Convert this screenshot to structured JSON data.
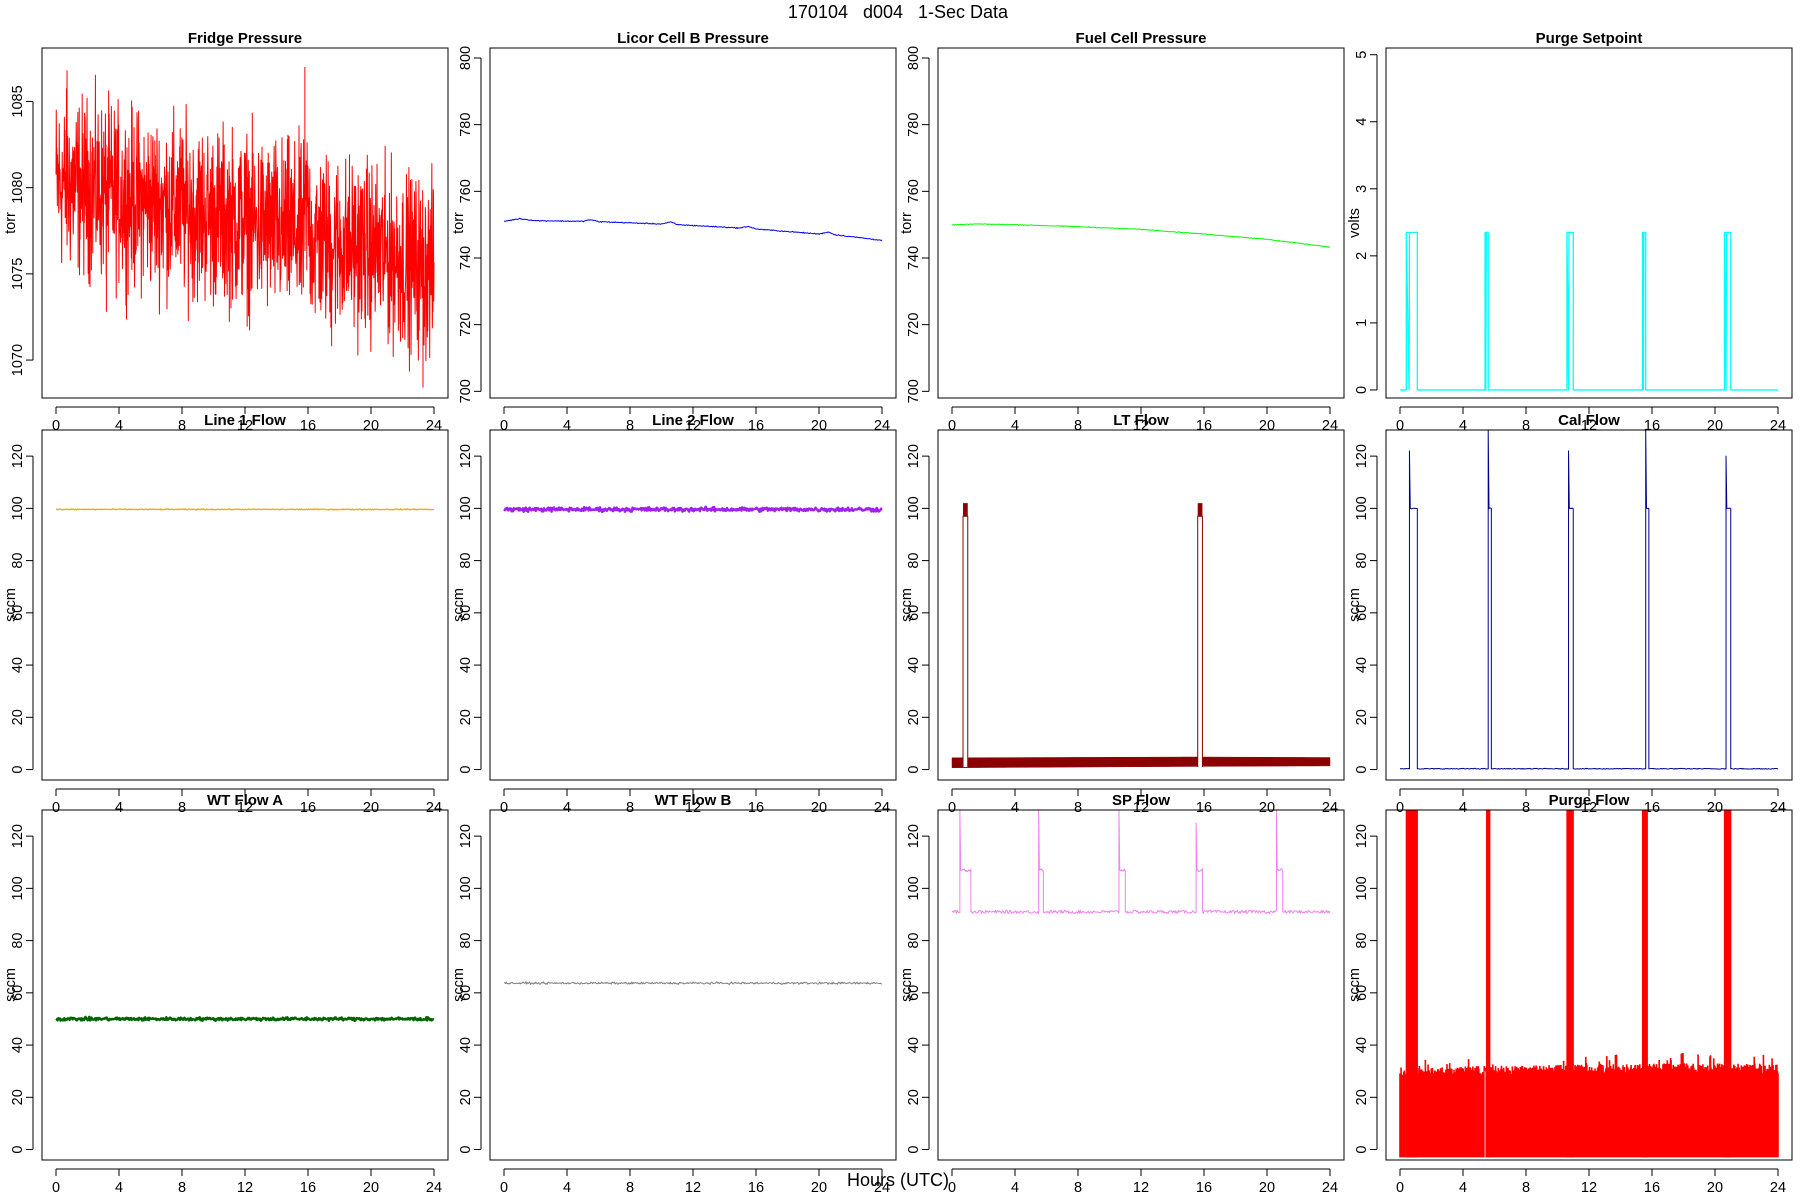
{
  "figure": {
    "title": "170104   d004   1-Sec Data",
    "xlabel": "Hours (UTC)"
  },
  "chart_data": [
    {
      "type": "line",
      "title": "Fridge Pressure",
      "ylabel": "torr",
      "color": "#ff0000",
      "xlim": [
        0,
        24
      ],
      "ylim": [
        1067.8,
        1088.1
      ],
      "xticks": [
        0,
        4,
        8,
        12,
        16,
        20,
        24
      ],
      "yticks": [
        1070,
        1075,
        1080,
        1085
      ],
      "noise": 3.3,
      "line_width": 1,
      "points": [
        [
          0,
          1080.3
        ],
        [
          2,
          1080
        ],
        [
          4,
          1079.5
        ],
        [
          8,
          1078.8
        ],
        [
          12,
          1078
        ],
        [
          15.8,
          1077.3
        ],
        [
          15.9,
          1079.5
        ],
        [
          16.2,
          1077
        ],
        [
          20,
          1076.4
        ],
        [
          24,
          1075.2
        ]
      ],
      "extremes": [
        [
          0.7,
          1086.8
        ],
        [
          15.8,
          1087.0
        ],
        [
          23.3,
          1068.4
        ],
        [
          3.2,
          1072.8
        ],
        [
          17.5,
          1070.8
        ]
      ]
    },
    {
      "type": "line",
      "title": "Licor Cell B Pressure",
      "ylabel": "torr",
      "color": "#0000ff",
      "xlim": [
        0,
        24
      ],
      "ylim": [
        698,
        803
      ],
      "xticks": [
        0,
        4,
        8,
        12,
        16,
        20,
        24
      ],
      "yticks": [
        700,
        720,
        740,
        760,
        780,
        800
      ],
      "noise": 0.15,
      "line_width": 1,
      "points": [
        [
          0,
          751
        ],
        [
          1,
          751.8
        ],
        [
          2,
          751.2
        ],
        [
          5,
          751
        ],
        [
          5.5,
          751.5
        ],
        [
          6,
          750.9
        ],
        [
          10,
          750.2
        ],
        [
          10.6,
          750.8
        ],
        [
          11,
          750
        ],
        [
          15,
          749
        ],
        [
          15.5,
          749.5
        ],
        [
          16,
          748.7
        ],
        [
          20,
          747.2
        ],
        [
          20.6,
          747.8
        ],
        [
          21,
          747
        ],
        [
          24,
          745.3
        ]
      ]
    },
    {
      "type": "line",
      "title": "Fuel Cell Pressure",
      "ylabel": "torr",
      "color": "#00ff00",
      "xlim": [
        0,
        24
      ],
      "ylim": [
        698,
        803
      ],
      "xticks": [
        0,
        4,
        8,
        12,
        16,
        20,
        24
      ],
      "yticks": [
        700,
        720,
        740,
        760,
        780,
        800
      ],
      "noise": 0.12,
      "line_width": 1,
      "points": [
        [
          0,
          749.9
        ],
        [
          1.5,
          750.2
        ],
        [
          4,
          750
        ],
        [
          8,
          749.4
        ],
        [
          12,
          748.6
        ],
        [
          16,
          747.2
        ],
        [
          20,
          745.6
        ],
        [
          24,
          743.3
        ]
      ]
    },
    {
      "type": "line",
      "title": "Purge Setpoint",
      "ylabel": "volts",
      "color": "#00ffff",
      "xlim": [
        0,
        24
      ],
      "ylim": [
        -0.12,
        5.1
      ],
      "xticks": [
        0,
        4,
        8,
        12,
        16,
        20,
        24
      ],
      "yticks": [
        0,
        1,
        2,
        3,
        4,
        5
      ],
      "noise": 0,
      "line_width": 1.3,
      "baseline": 0,
      "spike_level": 2.35,
      "spikes": [
        [
          0.4,
          1.1
        ],
        [
          5.4,
          5.6
        ],
        [
          10.6,
          11.0
        ],
        [
          15.4,
          15.6
        ],
        [
          20.6,
          21.0
        ]
      ]
    },
    {
      "type": "line",
      "title": "Line 1 Flow",
      "ylabel": "sccm",
      "color": "#ffa500",
      "xlim": [
        0,
        24
      ],
      "ylim": [
        -4,
        130
      ],
      "xticks": [
        0,
        4,
        8,
        12,
        16,
        20,
        24
      ],
      "yticks": [
        0,
        20,
        40,
        60,
        80,
        100,
        120
      ],
      "noise": 0.2,
      "line_width": 1.3,
      "points": [
        [
          0,
          99.6
        ],
        [
          24,
          99.6
        ]
      ]
    },
    {
      "type": "line",
      "title": "Line 2 Flow",
      "ylabel": "sccm",
      "color": "#a020f0",
      "xlim": [
        0,
        24
      ],
      "ylim": [
        -4,
        130
      ],
      "xticks": [
        0,
        4,
        8,
        12,
        16,
        20,
        24
      ],
      "yticks": [
        0,
        20,
        40,
        60,
        80,
        100,
        120
      ],
      "noise": 0.8,
      "line_width": 2.5,
      "points": [
        [
          0,
          99.6
        ],
        [
          24,
          99.6
        ]
      ]
    },
    {
      "type": "line",
      "title": "LT Flow",
      "ylabel": "sccm",
      "color": "#8b0000",
      "xlim": [
        0,
        24
      ],
      "ylim": [
        -4,
        130
      ],
      "xticks": [
        0,
        4,
        8,
        12,
        16,
        20,
        24
      ],
      "yticks": [
        0,
        20,
        40,
        60,
        80,
        100,
        120
      ],
      "noise": 0,
      "line_width": 1,
      "baseline_band": [
        [
          0,
          0.7,
          4.5
        ],
        [
          15.6,
          1.2,
          4.8
        ],
        [
          24,
          1.4,
          4.6
        ]
      ],
      "spikes": [
        [
          0.7,
          1.0,
          97,
          102
        ],
        [
          15.6,
          15.9,
          97,
          102
        ]
      ]
    },
    {
      "type": "line",
      "title": "Cal Flow",
      "ylabel": "sccm",
      "color": "#00008b",
      "xlim": [
        0,
        24
      ],
      "ylim": [
        -4,
        130
      ],
      "xticks": [
        0,
        4,
        8,
        12,
        16,
        20,
        24
      ],
      "yticks": [
        0,
        20,
        40,
        60,
        80,
        100,
        120
      ],
      "noise": 0.15,
      "line_width": 1,
      "baseline": 0.3,
      "spike_level": 100,
      "spikes": [
        [
          0.6,
          1.1,
          122
        ],
        [
          5.6,
          5.8,
          130
        ],
        [
          10.7,
          11.0,
          122
        ],
        [
          15.6,
          15.8,
          130
        ],
        [
          20.7,
          21.0,
          120
        ]
      ]
    },
    {
      "type": "line",
      "title": "WT Flow A",
      "ylabel": "sccm",
      "color": "#006400",
      "xlim": [
        0,
        24
      ],
      "ylim": [
        -4,
        130
      ],
      "xticks": [
        0,
        4,
        8,
        12,
        16,
        20,
        24
      ],
      "yticks": [
        0,
        20,
        40,
        60,
        80,
        100,
        120
      ],
      "noise": 0.6,
      "line_width": 2.5,
      "points": [
        [
          0,
          50
        ],
        [
          24,
          50
        ]
      ]
    },
    {
      "type": "line",
      "title": "WT Flow B",
      "ylabel": "sccm",
      "color": "#808080",
      "xlim": [
        0,
        24
      ],
      "ylim": [
        -4,
        130
      ],
      "xticks": [
        0,
        4,
        8,
        12,
        16,
        20,
        24
      ],
      "yticks": [
        0,
        20,
        40,
        60,
        80,
        100,
        120
      ],
      "noise": 0.4,
      "line_width": 1,
      "points": [
        [
          0,
          63.7
        ],
        [
          24,
          63.7
        ]
      ]
    },
    {
      "type": "line",
      "title": "SP Flow",
      "ylabel": "sccm",
      "color": "#ee82ee",
      "xlim": [
        0,
        24
      ],
      "ylim": [
        -4,
        130
      ],
      "xticks": [
        0,
        4,
        8,
        12,
        16,
        20,
        24
      ],
      "yticks": [
        0,
        20,
        40,
        60,
        80,
        100,
        120
      ],
      "noise": 0.6,
      "line_width": 1,
      "baseline": 91,
      "spike_level": 107,
      "spikes": [
        [
          0.5,
          1.2,
          130
        ],
        [
          5.5,
          5.8,
          130
        ],
        [
          10.6,
          11.0,
          130
        ],
        [
          15.5,
          15.9,
          125
        ],
        [
          20.6,
          21.0,
          130
        ]
      ]
    },
    {
      "type": "line",
      "title": "Purge Flow",
      "ylabel": "sccm",
      "color": "#ff0000",
      "xlim": [
        0,
        24
      ],
      "ylim": [
        -4,
        130
      ],
      "xticks": [
        0,
        4,
        8,
        12,
        16,
        20,
        24
      ],
      "yticks": [
        0,
        20,
        40,
        60,
        80,
        100,
        120
      ],
      "noise": 0,
      "line_width": 1,
      "fill_band": [
        [
          0,
          -3,
          31
        ],
        [
          5,
          -3,
          32
        ],
        [
          15.6,
          -3,
          33
        ],
        [
          24,
          -3,
          33
        ]
      ],
      "spikes": [
        [
          0.4,
          1.1,
          130
        ],
        [
          5.5,
          5.7,
          130
        ],
        [
          10.6,
          11.0,
          130
        ],
        [
          15.4,
          15.7,
          130
        ],
        [
          20.6,
          21.0,
          130
        ]
      ]
    }
  ]
}
